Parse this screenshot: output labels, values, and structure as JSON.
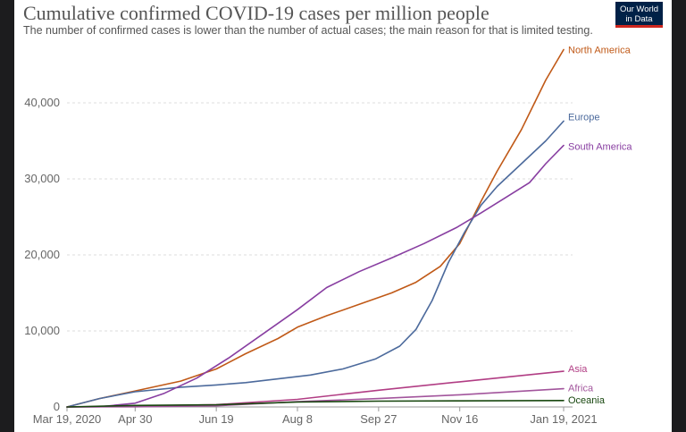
{
  "header": {
    "title": "Cumulative confirmed COVID-19 cases per million people",
    "subtitle": "The number of confirmed cases is lower than the number of actual cases; the main reason for that is limited testing.",
    "logo_line1": "Our World",
    "logo_line2": "in Data"
  },
  "chart_data": {
    "type": "line",
    "title": "Cumulative confirmed COVID-19 cases per million people",
    "xlabel": "",
    "ylabel": "",
    "xlim": [
      0,
      306
    ],
    "ylim": [
      0,
      48000
    ],
    "grid": true,
    "x_ticks": [
      {
        "label": "Mar 19, 2020",
        "day": 0
      },
      {
        "label": "Apr 30",
        "day": 42
      },
      {
        "label": "Jun 19",
        "day": 92
      },
      {
        "label": "Aug 8",
        "day": 142
      },
      {
        "label": "Sep 27",
        "day": 192
      },
      {
        "label": "Nov 16",
        "day": 242
      },
      {
        "label": "Jan 19, 2021",
        "day": 306
      }
    ],
    "y_ticks": [
      {
        "label": "0",
        "value": 0
      },
      {
        "label": "10,000",
        "value": 10000
      },
      {
        "label": "20,000",
        "value": 20000
      },
      {
        "label": "30,000",
        "value": 30000
      },
      {
        "label": "40,000",
        "value": 40000
      }
    ],
    "series": [
      {
        "name": "North America",
        "color": "#c05917",
        "x": [
          0,
          20,
          42,
          70,
          92,
          110,
          130,
          142,
          160,
          180,
          200,
          215,
          230,
          242,
          255,
          265,
          280,
          295,
          306
        ],
        "y": [
          0,
          1100,
          2100,
          3400,
          5000,
          7000,
          9000,
          10500,
          12000,
          13500,
          15000,
          16400,
          18500,
          21500,
          27000,
          31000,
          36500,
          43000,
          47000
        ]
      },
      {
        "name": "Europe",
        "color": "#4c6a9c",
        "x": [
          0,
          20,
          42,
          70,
          92,
          110,
          130,
          150,
          170,
          190,
          205,
          215,
          225,
          235,
          245,
          255,
          265,
          280,
          295,
          306
        ],
        "y": [
          0,
          1100,
          2000,
          2600,
          2900,
          3200,
          3700,
          4200,
          5000,
          6300,
          8000,
          10200,
          14000,
          19000,
          23000,
          26500,
          29000,
          32000,
          35000,
          37600
        ]
      },
      {
        "name": "South America",
        "color": "#883ea1",
        "x": [
          0,
          20,
          42,
          60,
          80,
          100,
          120,
          142,
          160,
          180,
          200,
          220,
          240,
          255,
          270,
          285,
          295,
          306
        ],
        "y": [
          0,
          20,
          500,
          1800,
          3800,
          6500,
          9500,
          12800,
          15700,
          17800,
          19600,
          21500,
          23600,
          25500,
          27500,
          29500,
          32000,
          34400
        ]
      },
      {
        "name": "Asia",
        "color": "#b13d84",
        "x": [
          0,
          42,
          92,
          142,
          192,
          242,
          306
        ],
        "y": [
          0,
          100,
          300,
          1000,
          2200,
          3300,
          4700
        ]
      },
      {
        "name": "Africa",
        "color": "#a2559c",
        "x": [
          0,
          42,
          92,
          142,
          192,
          242,
          306
        ],
        "y": [
          0,
          20,
          150,
          700,
          1100,
          1600,
          2400
        ]
      },
      {
        "name": "Oceania",
        "color": "#18470f",
        "x": [
          0,
          42,
          92,
          142,
          192,
          242,
          306
        ],
        "y": [
          0,
          200,
          280,
          650,
          770,
          800,
          850
        ]
      }
    ]
  }
}
